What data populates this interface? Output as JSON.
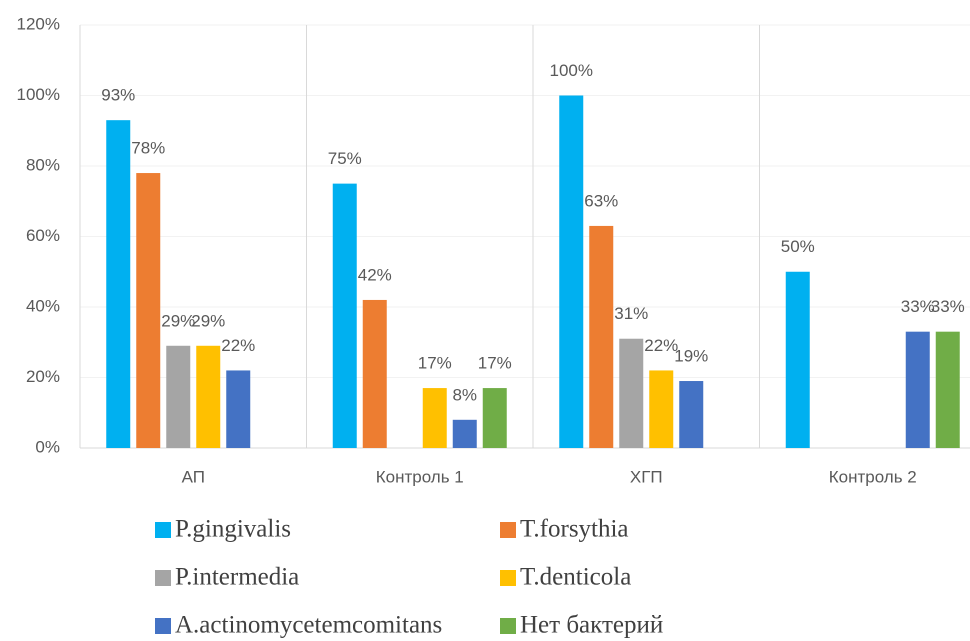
{
  "chart_data": {
    "type": "bar",
    "categories": [
      "АП",
      "Контроль 1",
      "ХГП",
      "Контроль 2"
    ],
    "series": [
      {
        "name": "P.gingivalis",
        "color": "#00b0f0",
        "values": [
          93,
          75,
          100,
          50
        ],
        "value_labels": [
          "93%",
          "75%",
          "100%",
          "50%"
        ]
      },
      {
        "name": "T.forsythia",
        "color": "#ed7d31",
        "values": [
          78,
          42,
          63,
          null
        ],
        "value_labels": [
          "78%",
          "42%",
          "63%",
          null
        ]
      },
      {
        "name": "P.intermedia",
        "color": "#a5a5a5",
        "values": [
          29,
          null,
          31,
          null
        ],
        "value_labels": [
          "29%",
          null,
          "31%",
          null
        ]
      },
      {
        "name": "T.denticola",
        "color": "#ffc000",
        "values": [
          29,
          17,
          22,
          null
        ],
        "value_labels": [
          "29%",
          "17%",
          "22%",
          null
        ]
      },
      {
        "name": "A.actinomycetemcomitans",
        "color": "#4472c4",
        "values": [
          22,
          8,
          19,
          33
        ],
        "value_labels": [
          "22%",
          "8%",
          "19%",
          "33%"
        ]
      },
      {
        "name": "Нет бактерий",
        "color": "#70ad47",
        "values": [
          null,
          17,
          null,
          33
        ],
        "value_labels": [
          null,
          "17%",
          null,
          "33%"
        ]
      }
    ],
    "ylim": [
      0,
      120
    ],
    "yticks": [
      {
        "value": 0,
        "label": "0%"
      },
      {
        "value": 20,
        "label": "20%"
      },
      {
        "value": 40,
        "label": "40%"
      },
      {
        "value": 60,
        "label": "60%"
      },
      {
        "value": 80,
        "label": "80%"
      },
      {
        "value": 100,
        "label": "100%"
      },
      {
        "value": 120,
        "label": "120%"
      }
    ]
  }
}
